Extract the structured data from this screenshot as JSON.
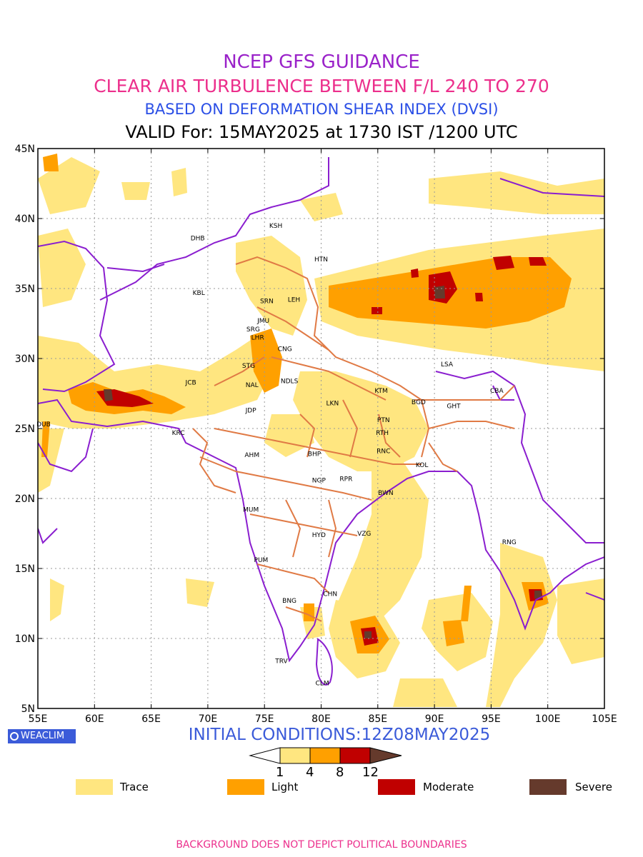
{
  "titles": {
    "line1": "NCEP GFS GUIDANCE",
    "line2": "CLEAR AIR TURBULENCE BETWEEN F/L 240 TO 270",
    "line3": "BASED ON DEFORMATION SHEAR INDEX (DVSI)",
    "line4": "VALID For: 15MAY2025 at 1730 IST /1200 UTC"
  },
  "axes": {
    "lon_ticks": [
      "55E",
      "60E",
      "65E",
      "70E",
      "75E",
      "80E",
      "85E",
      "90E",
      "95E",
      "100E",
      "105E"
    ],
    "lat_ticks": [
      "5N",
      "10N",
      "15N",
      "20N",
      "25N",
      "30N",
      "35N",
      "40N",
      "45N"
    ]
  },
  "stations": [
    {
      "code": "DHB",
      "lon": 69.1,
      "lat": 38.6
    },
    {
      "code": "KSH",
      "lon": 76.0,
      "lat": 39.5
    },
    {
      "code": "HTN",
      "lon": 80.0,
      "lat": 37.1
    },
    {
      "code": "KBL",
      "lon": 69.2,
      "lat": 34.7
    },
    {
      "code": "SRN",
      "lon": 75.2,
      "lat": 34.1
    },
    {
      "code": "LEH",
      "lon": 77.6,
      "lat": 34.2
    },
    {
      "code": "JMU",
      "lon": 74.9,
      "lat": 32.7
    },
    {
      "code": "SRG",
      "lon": 74.0,
      "lat": 32.1
    },
    {
      "code": "LHR",
      "lon": 74.4,
      "lat": 31.5
    },
    {
      "code": "CNG",
      "lon": 76.8,
      "lat": 30.7
    },
    {
      "code": "STG",
      "lon": 73.6,
      "lat": 29.5
    },
    {
      "code": "LSA",
      "lon": 91.1,
      "lat": 29.6
    },
    {
      "code": "JCB",
      "lon": 68.5,
      "lat": 28.3
    },
    {
      "code": "NAL",
      "lon": 73.9,
      "lat": 28.1
    },
    {
      "code": "NDLS",
      "lon": 77.2,
      "lat": 28.4
    },
    {
      "code": "KTM",
      "lon": 85.3,
      "lat": 27.7
    },
    {
      "code": "CBA",
      "lon": 95.5,
      "lat": 27.7
    },
    {
      "code": "BGD",
      "lon": 88.6,
      "lat": 26.9
    },
    {
      "code": "GHT",
      "lon": 91.7,
      "lat": 26.6
    },
    {
      "code": "LKN",
      "lon": 81.0,
      "lat": 26.8
    },
    {
      "code": "JDP",
      "lon": 73.8,
      "lat": 26.3
    },
    {
      "code": "PTN",
      "lon": 85.5,
      "lat": 25.6
    },
    {
      "code": "DUB",
      "lon": 55.5,
      "lat": 25.3
    },
    {
      "code": "RTH",
      "lon": 85.4,
      "lat": 24.7
    },
    {
      "code": "KRC",
      "lon": 67.4,
      "lat": 24.7
    },
    {
      "code": "BHP",
      "lon": 79.4,
      "lat": 23.2
    },
    {
      "code": "RNC",
      "lon": 85.5,
      "lat": 23.4
    },
    {
      "code": "AHM",
      "lon": 73.9,
      "lat": 23.1
    },
    {
      "code": "KOL",
      "lon": 88.9,
      "lat": 22.4
    },
    {
      "code": "NGP",
      "lon": 79.8,
      "lat": 21.3
    },
    {
      "code": "RPR",
      "lon": 82.2,
      "lat": 21.4
    },
    {
      "code": "BWN",
      "lon": 85.7,
      "lat": 20.4
    },
    {
      "code": "MUM",
      "lon": 73.8,
      "lat": 19.2
    },
    {
      "code": "HYD",
      "lon": 79.8,
      "lat": 17.4
    },
    {
      "code": "VZG",
      "lon": 83.8,
      "lat": 17.5
    },
    {
      "code": "RNG",
      "lon": 96.6,
      "lat": 16.9
    },
    {
      "code": "PUM",
      "lon": 74.7,
      "lat": 15.6
    },
    {
      "code": "CHN",
      "lon": 80.8,
      "lat": 13.2
    },
    {
      "code": "BNG",
      "lon": 77.2,
      "lat": 12.7
    },
    {
      "code": "TRV",
      "lon": 76.5,
      "lat": 8.4
    },
    {
      "code": "CLM",
      "lon": 80.1,
      "lat": 6.8
    }
  ],
  "colorbar": {
    "ticks": [
      "1",
      "4",
      "8",
      "12"
    ],
    "colors": [
      "#ffe680",
      "#ffa000",
      "#c00000",
      "#653a2c"
    ]
  },
  "legend": [
    {
      "label": "Trace",
      "color": "#ffe680"
    },
    {
      "label": "Light",
      "color": "#ffa000"
    },
    {
      "label": "Moderate",
      "color": "#c00000"
    },
    {
      "label": "Severe",
      "color": "#653a2c"
    }
  ],
  "badge": "WEACLIM",
  "initial_conditions": "INITIAL CONDITIONS:12Z08MAY2025",
  "footer": "BACKGROUND DOES NOT DEPICT POLITICAL BOUNDARIES"
}
